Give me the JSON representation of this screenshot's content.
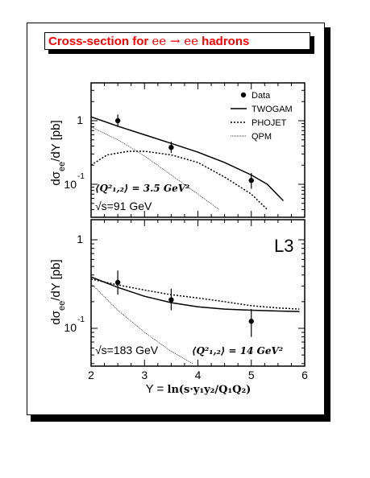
{
  "title": {
    "prefix": "Cross-section for ",
    "process": "ee → ee",
    "suffix": " hadrons"
  },
  "chart_data": [
    {
      "type": "line",
      "ylabel": "dσee/dY [pb]",
      "ylabel_main": "dσ",
      "ylabel_sub": "ee",
      "ylabel_tail": "/dY [pb]",
      "yscale": "log",
      "xlim": [
        2,
        6
      ],
      "ylim": [
        0.04,
        2
      ],
      "y_tick_labels": [
        {
          "value": 1,
          "base": "1",
          "exp": ""
        },
        {
          "value": 0.1,
          "base": "10",
          "exp": "-1"
        }
      ],
      "legend": {
        "placement": "top-right",
        "entries": [
          "Data",
          "TWOGAM",
          "PHOJET",
          "QPM"
        ]
      },
      "annotations": {
        "q2": "⟨Q²₁,₂⟩ = 3.5 GeV²",
        "energy": "√s=91 GeV"
      },
      "data_points": [
        {
          "x": 2.5,
          "y": 1.0,
          "err_lo": 0.8,
          "err_hi": 1.25
        },
        {
          "x": 3.5,
          "y": 0.38,
          "err_lo": 0.31,
          "err_hi": 0.47
        },
        {
          "x": 5.0,
          "y": 0.115,
          "err_lo": 0.085,
          "err_hi": 0.15
        }
      ],
      "series": [
        {
          "name": "TWOGAM",
          "style": "solid",
          "x": [
            2.0,
            2.5,
            3.0,
            3.5,
            4.0,
            4.5,
            5.0,
            5.3,
            5.6
          ],
          "y": [
            1.15,
            0.82,
            0.6,
            0.44,
            0.32,
            0.22,
            0.14,
            0.1,
            0.055
          ]
        },
        {
          "name": "PHOJET",
          "style": "dotted",
          "x": [
            2.0,
            2.3,
            2.7,
            3.0,
            3.5,
            4.0,
            4.5,
            5.0,
            5.3
          ],
          "y": [
            0.2,
            0.29,
            0.33,
            0.33,
            0.29,
            0.22,
            0.13,
            0.07,
            0.04
          ]
        },
        {
          "name": "QPM",
          "style": "thin",
          "x": [
            2.0,
            2.5,
            3.0,
            3.5,
            4.0,
            4.4
          ],
          "y": [
            0.8,
            0.5,
            0.28,
            0.14,
            0.07,
            0.04
          ]
        }
      ]
    },
    {
      "type": "line",
      "ylabel": "dσee/dY [pb]",
      "ylabel_main": "dσ",
      "ylabel_sub": "ee",
      "ylabel_tail": "/dY [pb]",
      "xlabel": "Y = ln(s y1y2 / Q1Q2)",
      "xlabel_text": "Y = ",
      "xlabel_formula": "ln(s·y₁y₂/Q₁Q₂)",
      "yscale": "log",
      "xlim": [
        2,
        6
      ],
      "ylim": [
        0.04,
        2
      ],
      "x_ticks": [
        "2",
        "3",
        "4",
        "5",
        "6"
      ],
      "x_tick_values": [
        2,
        3,
        4,
        5,
        6
      ],
      "y_tick_labels": [
        {
          "value": 1,
          "base": "1",
          "exp": ""
        },
        {
          "value": 0.1,
          "base": "10",
          "exp": "-1"
        }
      ],
      "annotations": {
        "label": "L3",
        "energy": "√s=183 GeV",
        "q2": "⟨Q²₁,₂⟩ = 14 GeV²"
      },
      "data_points": [
        {
          "x": 2.5,
          "y": 0.33,
          "err_lo": 0.24,
          "err_hi": 0.45
        },
        {
          "x": 3.5,
          "y": 0.21,
          "err_lo": 0.16,
          "err_hi": 0.28
        },
        {
          "x": 5.0,
          "y": 0.12,
          "err_lo": 0.08,
          "err_hi": 0.165
        }
      ],
      "series": [
        {
          "name": "TWOGAM",
          "style": "solid",
          "x": [
            2.0,
            2.5,
            3.0,
            3.5,
            4.0,
            4.5,
            5.0,
            5.5,
            5.9
          ],
          "y": [
            0.38,
            0.29,
            0.23,
            0.195,
            0.175,
            0.165,
            0.16,
            0.157,
            0.155
          ]
        },
        {
          "name": "PHOJET",
          "style": "dotted",
          "x": [
            2.0,
            2.5,
            3.0,
            3.5,
            4.0,
            4.5,
            5.0,
            5.5,
            5.9
          ],
          "y": [
            0.36,
            0.31,
            0.27,
            0.24,
            0.22,
            0.2,
            0.18,
            0.17,
            0.165
          ]
        },
        {
          "name": "QPM",
          "style": "thin",
          "x": [
            2.0,
            2.5,
            3.0,
            3.5,
            3.9
          ],
          "y": [
            0.32,
            0.16,
            0.09,
            0.055,
            0.04
          ]
        }
      ]
    }
  ]
}
